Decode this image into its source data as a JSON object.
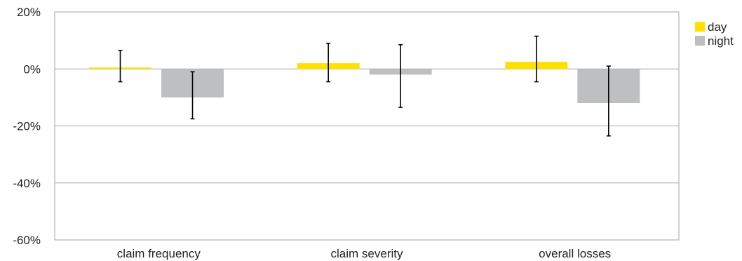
{
  "chart_data": {
    "type": "bar",
    "categories": [
      "claim frequency",
      "claim severity",
      "overall losses"
    ],
    "series": [
      {
        "name": "day",
        "color": "#ffe100",
        "values": [
          0.5,
          2.0,
          2.5
        ],
        "error_low": [
          -4.5,
          -4.5,
          -4.5
        ],
        "error_high": [
          6.5,
          9.0,
          11.5
        ]
      },
      {
        "name": "night",
        "color": "#bebfc1",
        "values": [
          -10.0,
          -2.0,
          -12.0
        ],
        "error_low": [
          -17.5,
          -13.5,
          -23.5
        ],
        "error_high": [
          -1.0,
          8.5,
          1.0
        ]
      }
    ],
    "y_ticks": [
      "20%",
      "0%",
      "-20%",
      "-40%",
      "-60%"
    ],
    "ylim": [
      -60,
      20
    ],
    "y_unit": "%",
    "grid": true,
    "legend_position": "top-right"
  }
}
